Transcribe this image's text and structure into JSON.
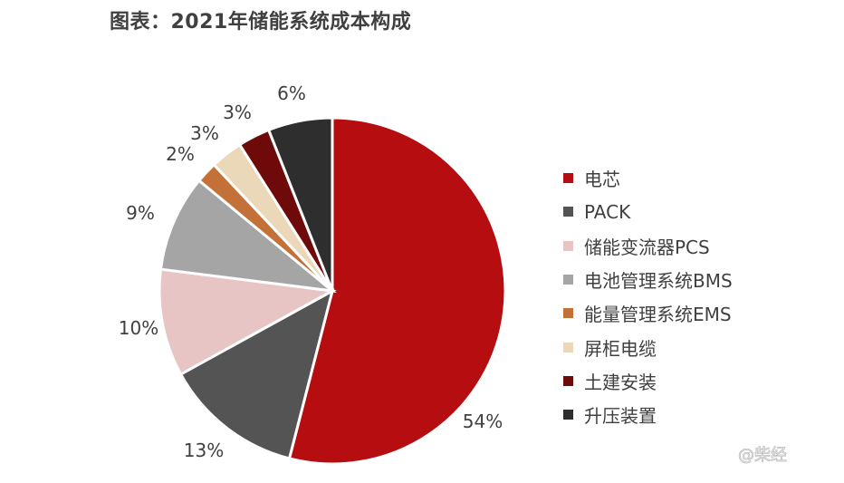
{
  "chart_data": {
    "type": "pie",
    "title": "图表：2021年储能系统成本构成",
    "categories": [
      "电芯",
      "PACK",
      "储能变流器PCS",
      "电池管理系统BMS",
      "能量管理系统EMS",
      "屏柜电缆",
      "土建安装",
      "升压装置"
    ],
    "values": [
      54,
      13,
      10,
      9,
      2,
      3,
      3,
      6
    ],
    "labels": [
      "54%",
      "13%",
      "10%",
      "9%",
      "2%",
      "3%",
      "3%",
      "6%"
    ],
    "colors": [
      "#B50D10",
      "#545454",
      "#E8C5C5",
      "#A5A5A5",
      "#C47139",
      "#EAD8B9",
      "#6E0A0A",
      "#2E2E2E"
    ],
    "start_angle": "top",
    "direction": "clockwise",
    "legend_position": "right"
  },
  "watermark": "@柴经"
}
